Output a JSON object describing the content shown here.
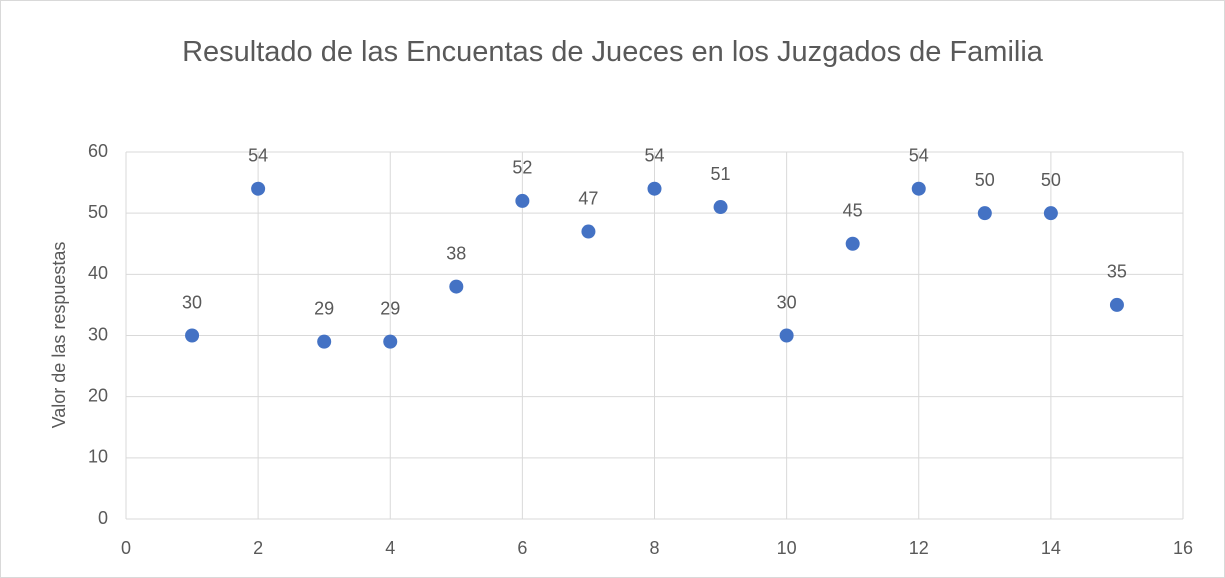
{
  "chart_data": {
    "type": "scatter",
    "title": "Resultado de las Encuentas de Jueces en los Juzgados de Familia",
    "y_label": "Valor de las respuestas",
    "x": [
      1,
      2,
      3,
      4,
      5,
      6,
      7,
      8,
      9,
      10,
      11,
      12,
      13,
      14,
      15
    ],
    "values": [
      30,
      54,
      29,
      29,
      38,
      52,
      47,
      54,
      51,
      30,
      45,
      54,
      50,
      50,
      35
    ],
    "color": "#4472c4",
    "xlim": [
      0,
      16
    ],
    "xticks": [
      0,
      2,
      4,
      6,
      8,
      10,
      12,
      14,
      16
    ],
    "ylim": [
      0,
      60
    ],
    "yticks": [
      0,
      10,
      20,
      30,
      40,
      50,
      60
    ],
    "grid": true
  }
}
